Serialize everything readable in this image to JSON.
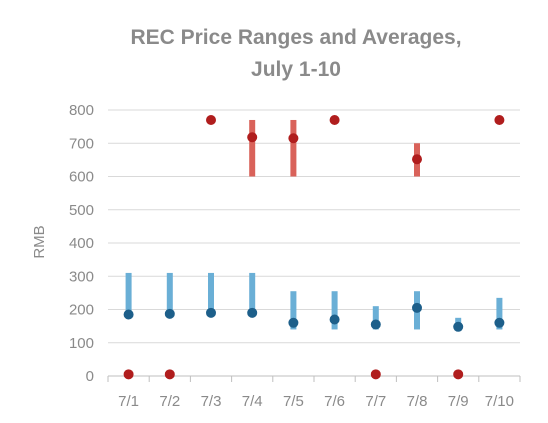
{
  "chart_data": {
    "type": "range-dot",
    "title_lines": [
      "REC Price Ranges and Averages,",
      "July 1-10"
    ],
    "ylabel": "RMB",
    "xlabel": "",
    "ylim": [
      0,
      800
    ],
    "yticks": [
      0,
      100,
      200,
      300,
      400,
      500,
      600,
      700,
      800
    ],
    "categories": [
      "7/1",
      "7/2",
      "7/3",
      "7/4",
      "7/5",
      "7/6",
      "7/7",
      "7/8",
      "7/9",
      "7/10"
    ],
    "grid": true,
    "legend": "none",
    "series": [
      {
        "color": "#6aafd6",
        "avg_color": "#1d5f8a",
        "low": [
          185,
          185,
          185,
          185,
          140,
          140,
          140,
          140,
          140,
          140
        ],
        "high": [
          310,
          310,
          310,
          310,
          255,
          255,
          210,
          255,
          175,
          235
        ],
        "avg": [
          185,
          187,
          190,
          190,
          160,
          170,
          155,
          205,
          148,
          160
        ]
      },
      {
        "color": "#d9625a",
        "avg_color": "#b01d1d",
        "low": [
          null,
          null,
          null,
          600,
          600,
          null,
          null,
          600,
          null,
          null
        ],
        "high": [
          null,
          null,
          null,
          770,
          770,
          null,
          null,
          700,
          null,
          null
        ],
        "avg": [
          5,
          5,
          770,
          718,
          715,
          770,
          5,
          652,
          5,
          770
        ]
      }
    ]
  }
}
